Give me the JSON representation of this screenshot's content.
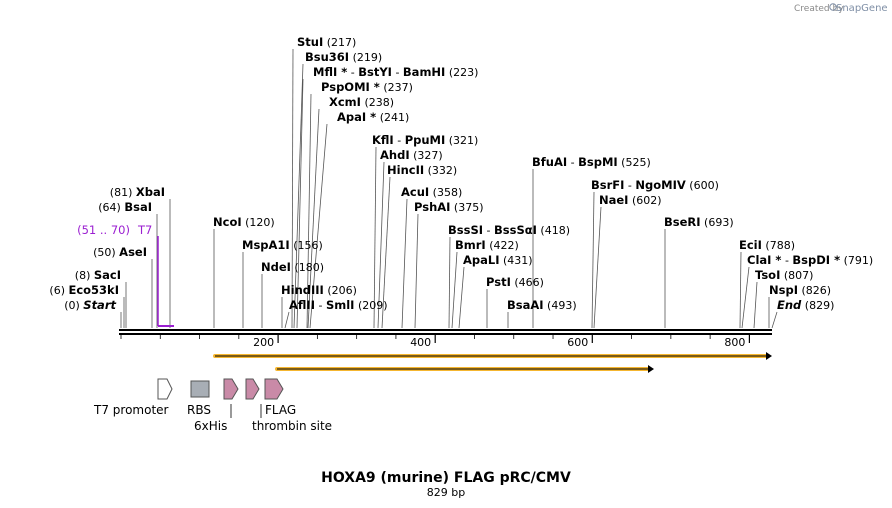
{
  "credit": {
    "created_by": "Created by",
    "brand": "SnapGene"
  },
  "title": "HOXA9 (murine) FLAG pRC/CMV",
  "subtitle": "829 bp",
  "axis_ticks": [
    "200",
    "400",
    "600",
    "800"
  ],
  "primer": {
    "range": "(51 .. 70)",
    "name": "T7",
    "color": "#9b1fd1"
  },
  "sites": [
    {
      "id": "stui",
      "parts": [
        {
          "t": "StuI"
        }
      ],
      "pos": "(217)"
    },
    {
      "id": "bsu36i",
      "parts": [
        {
          "t": "Bsu36I"
        }
      ],
      "pos": "(219)"
    },
    {
      "id": "mfli",
      "parts": [
        {
          "t": "MflI *"
        },
        {
          "t": " - ",
          "sep": true
        },
        {
          "t": "BstYI"
        },
        {
          "t": " - ",
          "sep": true
        },
        {
          "t": "BamHI"
        }
      ],
      "pos": "(223)"
    },
    {
      "id": "pspomi",
      "parts": [
        {
          "t": "PspOMI *"
        }
      ],
      "pos": "(237)"
    },
    {
      "id": "xcmi",
      "parts": [
        {
          "t": "XcmI"
        }
      ],
      "pos": "(238)"
    },
    {
      "id": "apai",
      "parts": [
        {
          "t": "ApaI *"
        }
      ],
      "pos": "(241)"
    },
    {
      "id": "kfli",
      "parts": [
        {
          "t": "KflI"
        },
        {
          "t": " - ",
          "sep": true
        },
        {
          "t": "PpuMI"
        }
      ],
      "pos": "(321)"
    },
    {
      "id": "ahdi",
      "parts": [
        {
          "t": "AhdI"
        }
      ],
      "pos": "(327)"
    },
    {
      "id": "hincii",
      "parts": [
        {
          "t": "HincII"
        }
      ],
      "pos": "(332)"
    },
    {
      "id": "acui",
      "parts": [
        {
          "t": "AcuI"
        }
      ],
      "pos": "(358)"
    },
    {
      "id": "pshai",
      "parts": [
        {
          "t": "PshAI"
        }
      ],
      "pos": "(375)"
    },
    {
      "id": "bfuai",
      "parts": [
        {
          "t": "BfuAI"
        },
        {
          "t": " - ",
          "sep": true
        },
        {
          "t": "BspMI"
        }
      ],
      "pos": "(525)"
    },
    {
      "id": "bsrfi",
      "parts": [
        {
          "t": "BsrFI"
        },
        {
          "t": " - ",
          "sep": true
        },
        {
          "t": "NgoMIV"
        }
      ],
      "pos": "(600)"
    },
    {
      "id": "naei",
      "parts": [
        {
          "t": "NaeI"
        }
      ],
      "pos": "(602)"
    },
    {
      "id": "bseri",
      "parts": [
        {
          "t": "BseRI"
        }
      ],
      "pos": "(693)"
    },
    {
      "id": "ecii",
      "parts": [
        {
          "t": "EciI"
        }
      ],
      "pos": "(788)"
    },
    {
      "id": "clai",
      "parts": [
        {
          "t": "ClaI *"
        },
        {
          "t": " - ",
          "sep": true
        },
        {
          "t": "BspDI *"
        }
      ],
      "pos": "(791)"
    },
    {
      "id": "tsoi",
      "parts": [
        {
          "t": "TsoI"
        }
      ],
      "pos": "(807)"
    },
    {
      "id": "nspi",
      "parts": [
        {
          "t": "NspI"
        }
      ],
      "pos": "(826)"
    },
    {
      "id": "end",
      "parts": [
        {
          "t": "End",
          "italic": true
        }
      ],
      "pos": "(829)"
    },
    {
      "id": "bsssi",
      "parts": [
        {
          "t": "BssSI"
        },
        {
          "t": " - ",
          "sep": true
        },
        {
          "t": "BssSαI"
        }
      ],
      "pos": "(418)"
    },
    {
      "id": "bmri",
      "parts": [
        {
          "t": "BmrI"
        }
      ],
      "pos": "(422)"
    },
    {
      "id": "apali",
      "parts": [
        {
          "t": "ApaLI"
        }
      ],
      "pos": "(431)"
    },
    {
      "id": "psti",
      "parts": [
        {
          "t": "PstI"
        }
      ],
      "pos": "(466)"
    },
    {
      "id": "bsaai",
      "parts": [
        {
          "t": "BsaAI"
        }
      ],
      "pos": "(493)"
    },
    {
      "id": "ncoi",
      "parts": [
        {
          "t": "NcoI"
        }
      ],
      "pos": "(120)"
    },
    {
      "id": "mspa1i",
      "parts": [
        {
          "t": "MspA1I"
        }
      ],
      "pos": "(156)"
    },
    {
      "id": "ndei",
      "parts": [
        {
          "t": "NdeI"
        }
      ],
      "pos": "(180)"
    },
    {
      "id": "hindiii",
      "parts": [
        {
          "t": "HindIII"
        }
      ],
      "pos": "(206)"
    },
    {
      "id": "aflii",
      "parts": [
        {
          "t": "AflII"
        },
        {
          "t": " - ",
          "sep": true
        },
        {
          "t": "SmlI"
        }
      ],
      "pos": "(209)"
    },
    {
      "id": "xbai",
      "parts": [
        {
          "t": "XbaI"
        }
      ],
      "pos": "(81)",
      "pos_first": true
    },
    {
      "id": "bsai",
      "parts": [
        {
          "t": "BsaI"
        }
      ],
      "pos": "(64)",
      "pos_first": true
    },
    {
      "id": "asei",
      "parts": [
        {
          "t": "AseI"
        }
      ],
      "pos": "(50)",
      "pos_first": true
    },
    {
      "id": "saci",
      "parts": [
        {
          "t": "SacI"
        }
      ],
      "pos": "(8)",
      "pos_first": true
    },
    {
      "id": "eco53ki",
      "parts": [
        {
          "t": "Eco53kI"
        }
      ],
      "pos": "(6)",
      "pos_first": true
    },
    {
      "id": "start",
      "parts": [
        {
          "t": "Start",
          "italic": true
        }
      ],
      "pos": "(0)",
      "pos_first": true
    }
  ],
  "features": [
    {
      "id": "t7-promoter",
      "label": "T7 promoter",
      "shape": "arrow-outline",
      "color": "#ffffff"
    },
    {
      "id": "rbs",
      "label": "RBS",
      "shape": "box",
      "color": "#a8aeb5"
    },
    {
      "id": "6xhis",
      "label": "6xHis",
      "shape": "arrow",
      "color": "#c98aa7"
    },
    {
      "id": "flag",
      "label": "FLAG",
      "shape": "arrow",
      "color": "#c98aa7"
    },
    {
      "id": "thrombin",
      "label": "thrombin site",
      "shape": "arrow",
      "color": "#c98aa7"
    }
  ],
  "orf_color": "#f5b630"
}
